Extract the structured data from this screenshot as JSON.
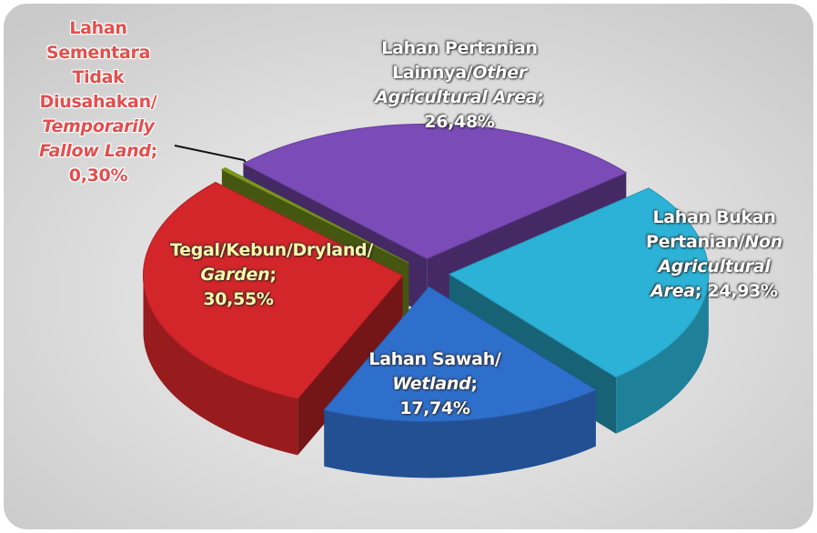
{
  "chart_data": {
    "type": "pie3d",
    "categories": [
      "Lahan Sawah/Wetland;",
      "Tegal/Kebun/Dryland/Garden;",
      "Lahan Sementara Tidak Diusahakan/Temporarily Fallow Land;",
      "Lahan Pertanian Lainnya/Other Agricultural Area;",
      "Lahan Bukan Pertanian/Non Agricultural Area;"
    ],
    "values": [
      17.74,
      30.55,
      0.3,
      26.48,
      24.93
    ],
    "value_labels": [
      "17,74%",
      "30,55%",
      "0,30%",
      "26,48%",
      "24,93%"
    ],
    "colors": [
      "#2f6fcc",
      "#d3262a",
      "#7e9c1e",
      "#7b4bb8",
      "#2bb2d6"
    ]
  }
}
